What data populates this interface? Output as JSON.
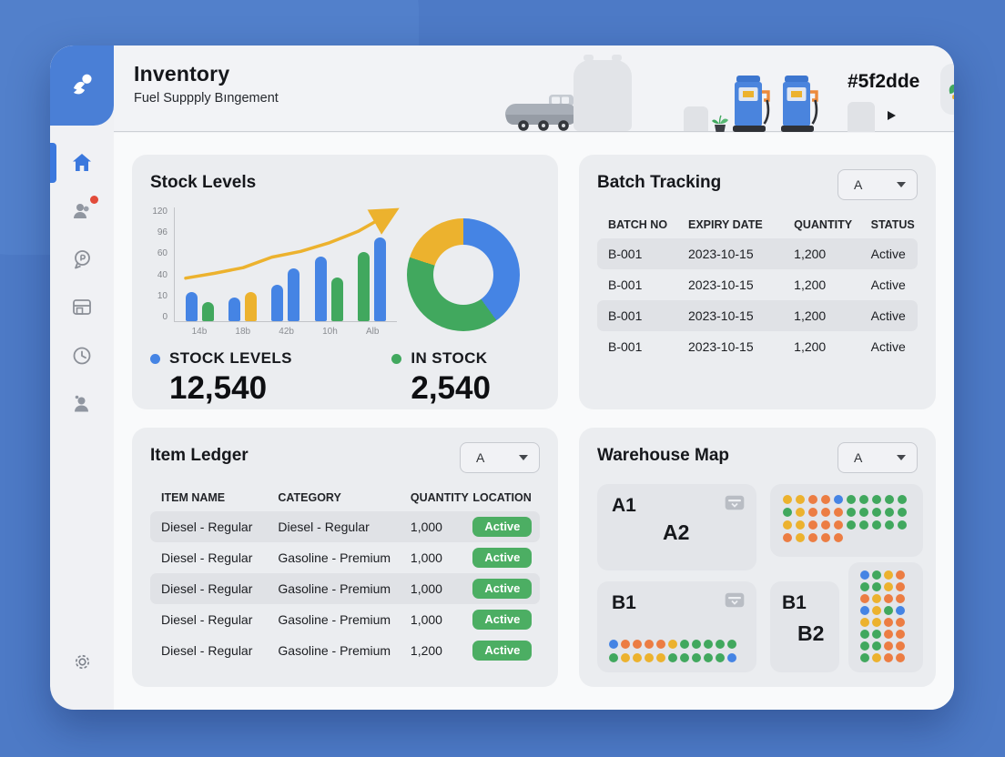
{
  "app": {
    "title": "Inventory",
    "subtitle": "Fuel Suppply Bıngement",
    "header_code": "#5f2dde"
  },
  "colors": {
    "blue": "#4584e4",
    "green": "#41a85e",
    "yellow": "#ecb22e",
    "orange": "#ec7d43",
    "badge_green": "#4cae63",
    "accent_blue": "#3b78dd"
  },
  "sidebar": {
    "icons": [
      "home-icon",
      "users-icon",
      "chat-icon",
      "panel-icon",
      "clock-icon",
      "person-icon"
    ],
    "settings_icon": "settings-icon",
    "active_item": "home"
  },
  "stock_levels": {
    "title": "Stock Levels",
    "chart": {
      "type": "bar",
      "y_ticks": [
        "120",
        "96",
        "60",
        "40",
        "10",
        "0"
      ],
      "ylim": [
        0,
        120
      ],
      "x_labels": [
        "14b",
        "18b",
        "42b",
        "10h",
        "Alb"
      ],
      "bar_groups": [
        {
          "label": "14b",
          "bars": [
            {
              "color": "blue",
              "value": 30
            },
            {
              "color": "green",
              "value": 20
            }
          ]
        },
        {
          "label": "18b",
          "bars": [
            {
              "color": "blue",
              "value": 25
            },
            {
              "color": "yellow",
              "value": 30
            }
          ]
        },
        {
          "label": "42b",
          "bars": [
            {
              "color": "blue",
              "value": 38
            },
            {
              "color": "blue",
              "value": 55
            }
          ]
        },
        {
          "label": "10h",
          "bars": [
            {
              "color": "blue",
              "value": 68
            },
            {
              "color": "green",
              "value": 46
            }
          ]
        },
        {
          "label": "Alb",
          "bars": [
            {
              "color": "green",
              "value": 72
            },
            {
              "color": "blue",
              "value": 88
            }
          ]
        }
      ],
      "trend_line": {
        "color": "yellow",
        "values": [
          46,
          51,
          57,
          68,
          74,
          83,
          95,
          112
        ]
      },
      "donut": {
        "type": "pie",
        "segments": [
          {
            "name": "stock-levels",
            "color": "blue",
            "pct": 40
          },
          {
            "name": "in-stock",
            "color": "green",
            "pct": 40
          },
          {
            "name": "other",
            "color": "yellow",
            "pct": 20
          }
        ]
      }
    },
    "metrics": [
      {
        "label": "STOCK LEVELS",
        "value": "12,540",
        "color": "blue"
      },
      {
        "label": "IN STOCK",
        "value": "2,540",
        "color": "green"
      }
    ]
  },
  "batch_tracking": {
    "title": "Batch Tracking",
    "filter_label": "A",
    "columns": [
      "BATCH NO",
      "EXPIRY DATE",
      "QUANTITY",
      "STATUS"
    ],
    "striped_rows": [
      0,
      2
    ],
    "rows": [
      [
        "B-001",
        "2023-10-15",
        "1,200",
        "Active"
      ],
      [
        "B-001",
        "2023-10-15",
        "1,200",
        "Active"
      ],
      [
        "B-001",
        "2023-10-15",
        "1,200",
        "Active"
      ],
      [
        "B-001",
        "2023-10-15",
        "1,200",
        "Active"
      ]
    ]
  },
  "item_ledger": {
    "title": "Item Ledger",
    "filter_label": "A",
    "columns": [
      "ITEM NAME",
      "CATEGORY",
      "QUANTITY",
      "LOCATION"
    ],
    "striped_rows": [
      0,
      2
    ],
    "rows": [
      [
        "Diesel - Regular",
        "Diesel - Regular",
        "1,000",
        "Active"
      ],
      [
        "Diesel - Regular",
        "Gasoline - Premium",
        "1,000",
        "Active"
      ],
      [
        "Diesel - Regular",
        "Gasoline - Premium",
        "1,000",
        "Active"
      ],
      [
        "Diesel - Regular",
        "Gasoline - Premium",
        "1,000",
        "Active"
      ],
      [
        "Diesel - Regular",
        "Gasoline - Premium",
        "1,200",
        "Active"
      ]
    ]
  },
  "warehouse_map": {
    "title": "Warehouse Map",
    "filter_label": "A",
    "zone_a": {
      "label": "A1",
      "sublabel": "A2"
    },
    "zone_b": {
      "label": "B1"
    },
    "zone_b2": {
      "label": "B1",
      "sublabel": "B2"
    },
    "dot_colors": {
      "b": "#4584e4",
      "g": "#41a85e",
      "y": "#ecb22e",
      "o": "#ec7d43"
    },
    "dots_top": [
      [
        "y",
        "y",
        "o",
        "o",
        "b",
        "g",
        "g",
        "g",
        "g",
        "g"
      ],
      [
        "g",
        "y",
        "o",
        "o",
        "o",
        "g",
        "g",
        "g",
        "g",
        "g"
      ],
      [
        "y",
        "y",
        "o",
        "o",
        "o",
        "g",
        "g",
        "g",
        "g",
        "g"
      ],
      [
        "o",
        "y",
        "o",
        "o",
        "o"
      ]
    ],
    "dots_b1": [
      [
        "b",
        "o",
        "o",
        "o",
        "o",
        "y",
        "g",
        "g",
        "g",
        "g",
        "g"
      ],
      [
        "g",
        "y",
        "y",
        "y",
        "y",
        "g",
        "g",
        "g",
        "g",
        "g",
        "b"
      ]
    ],
    "dots_right": [
      [
        "b",
        "g",
        "y",
        "o"
      ],
      [
        "g",
        "g",
        "y",
        "o"
      ],
      [
        "o",
        "y",
        "o",
        "o"
      ],
      [
        "b",
        "y",
        "g",
        "b"
      ],
      [
        "y",
        "y",
        "o",
        "o"
      ],
      [
        "g",
        "g",
        "o",
        "o"
      ],
      [
        "g",
        "g",
        "o",
        "o"
      ],
      [
        "g",
        "y",
        "o",
        "o"
      ]
    ]
  }
}
